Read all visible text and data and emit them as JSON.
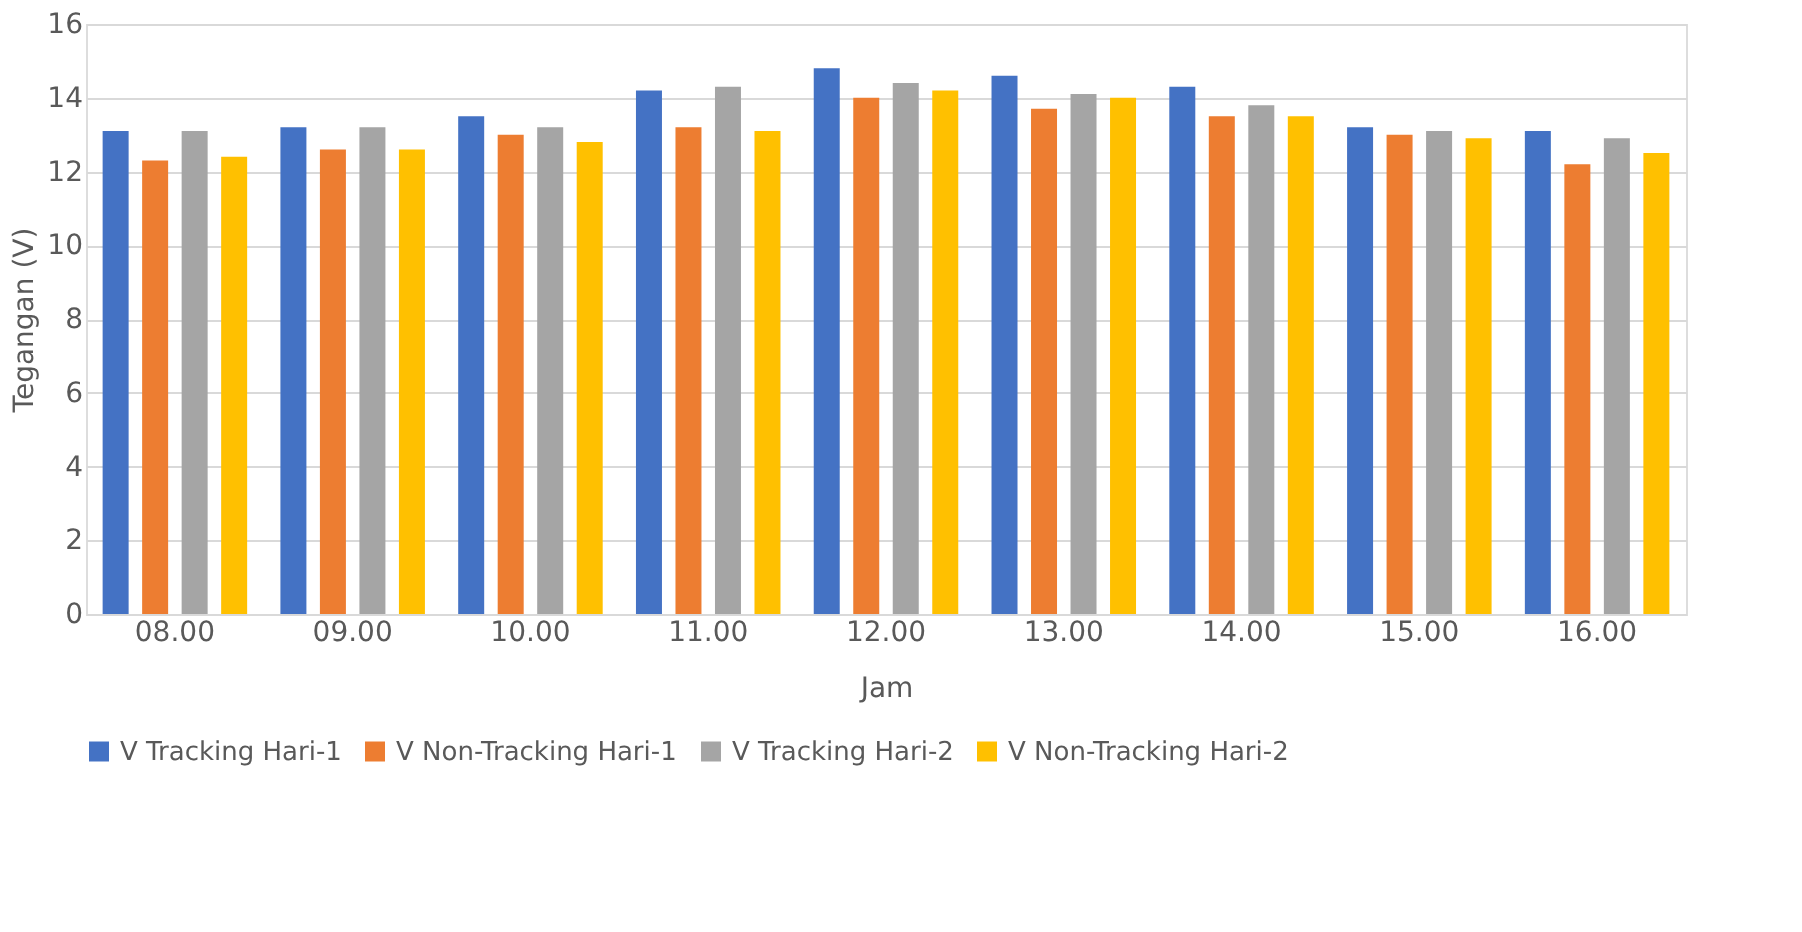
{
  "chart_data": {
    "type": "bar",
    "xlabel": "Jam",
    "ylabel": "Tegangan (V)",
    "categories": [
      "08.00",
      "09.00",
      "10.00",
      "11.00",
      "12.00",
      "13.00",
      "14.00",
      "15.00",
      "16.00"
    ],
    "series": [
      {
        "name": "V Tracking Hari-1",
        "color": "#4472c4",
        "values": [
          13.1,
          13.2,
          13.5,
          14.2,
          14.8,
          14.6,
          14.3,
          13.2,
          13.1
        ]
      },
      {
        "name": "V Non-Tracking Hari-1",
        "color": "#ed7d31",
        "values": [
          12.3,
          12.6,
          13.0,
          13.2,
          14.0,
          13.7,
          13.5,
          13.0,
          12.2
        ]
      },
      {
        "name": "V Tracking Hari-2",
        "color": "#a5a5a5",
        "values": [
          13.1,
          13.2,
          13.2,
          14.3,
          14.4,
          14.1,
          13.8,
          13.1,
          12.9
        ]
      },
      {
        "name": "V Non-Tracking Hari-2",
        "color": "#ffc000",
        "values": [
          12.4,
          12.6,
          12.8,
          13.1,
          14.2,
          14.0,
          13.5,
          12.9,
          12.5
        ]
      }
    ],
    "ylim": [
      0,
      16
    ],
    "yticks": [
      0,
      2,
      4,
      6,
      8,
      10,
      12,
      14,
      16
    ],
    "grid": "y",
    "legend": "bottom"
  }
}
